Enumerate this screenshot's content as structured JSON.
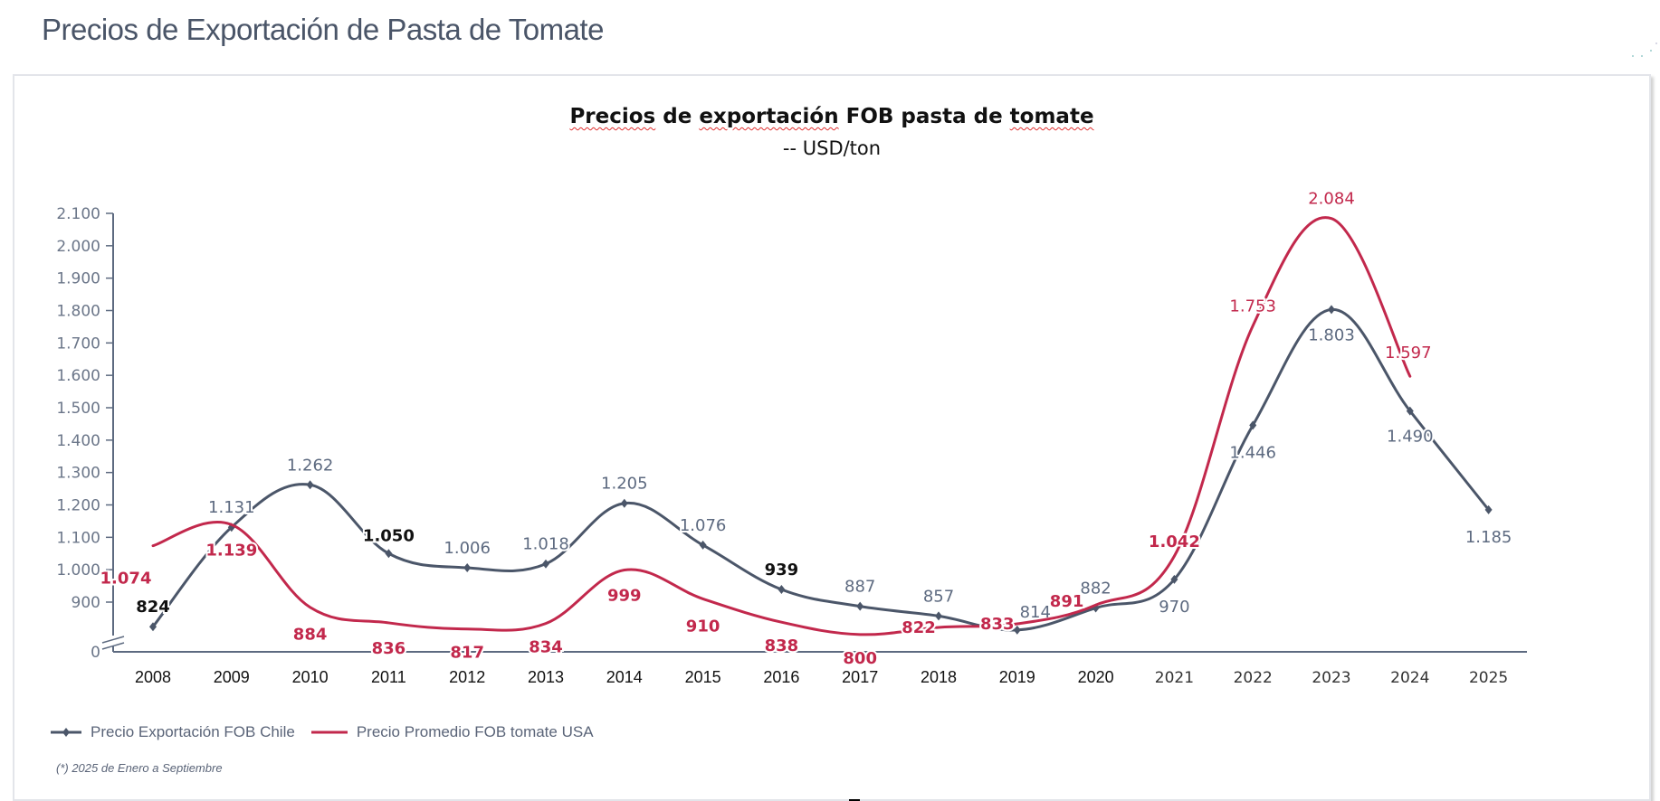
{
  "page": {
    "title": "Precios de Exportación de Pasta de Tomate"
  },
  "chart_data": {
    "type": "line",
    "title_parts": [
      "Precios",
      " de ",
      "exportación",
      " FOB pasta de ",
      "tomate"
    ],
    "title": "Precios de exportación FOB pasta de tomate",
    "subtitle": "-- USD/ton",
    "xlabel": "",
    "ylabel": "",
    "categories": [
      "2008",
      "2009",
      "2010",
      "2011",
      "2012",
      "2013",
      "2014",
      "2015",
      "2016",
      "2017",
      "2018",
      "2019",
      "2020",
      "2021",
      "2022",
      "2023",
      "2024",
      "2025"
    ],
    "y_ticks": [
      {
        "value": 0,
        "label": "0"
      },
      {
        "value": 900,
        "label": "900"
      },
      {
        "value": 1000,
        "label": "1.000"
      },
      {
        "value": 1100,
        "label": "1.100"
      },
      {
        "value": 1200,
        "label": "1.200"
      },
      {
        "value": 1300,
        "label": "1.300"
      },
      {
        "value": 1400,
        "label": "1.400"
      },
      {
        "value": 1500,
        "label": "1.500"
      },
      {
        "value": 1600,
        "label": "1.600"
      },
      {
        "value": 1700,
        "label": "1.700"
      },
      {
        "value": 1800,
        "label": "1.800"
      },
      {
        "value": 1900,
        "label": "1.900"
      },
      {
        "value": 2000,
        "label": "2.000"
      },
      {
        "value": 2100,
        "label": "2.100"
      }
    ],
    "ylim": [
      0,
      2100
    ],
    "axis_break": true,
    "grid": false,
    "legend_position": "bottom-left",
    "series": [
      {
        "name": "Precio Exportación FOB Chile",
        "color": "#4b5669",
        "marker": "diamond",
        "values": [
          824,
          1131,
          1262,
          1050,
          1006,
          1018,
          1205,
          1076,
          939,
          887,
          857,
          814,
          882,
          970,
          1446,
          1803,
          1490,
          1185
        ],
        "labels": [
          "824",
          "1.131",
          "1.262",
          "1.050",
          "1.006",
          "1.018",
          "1.205",
          "1.076",
          "939",
          "887",
          "857",
          "814",
          "882",
          "970",
          "1.446",
          "1.803",
          "1.490",
          "1.185"
        ]
      },
      {
        "name": "Precio Promedio FOB tomate USA",
        "color": "#c2284c",
        "marker": "none",
        "values": [
          1074,
          1139,
          884,
          836,
          817,
          834,
          999,
          910,
          838,
          800,
          822,
          833,
          891,
          1042,
          1753,
          2084,
          1597,
          null
        ],
        "labels": [
          "1.074",
          "1.139",
          "884",
          "836",
          "817",
          "834",
          "999",
          "910",
          "838",
          "800",
          "822",
          "833",
          "891",
          "1.042",
          "1.753",
          "2.084",
          "1.597",
          null
        ]
      }
    ],
    "footnote": "(*) 2025 de Enero a Septiembre"
  },
  "legend": {
    "items": [
      {
        "label": "Precio Exportación FOB Chile",
        "color": "#4b5669",
        "icon": "line-diamond-icon"
      },
      {
        "label": "Precio Promedio FOB tomate USA",
        "color": "#c2284c",
        "icon": "line-icon"
      }
    ]
  }
}
